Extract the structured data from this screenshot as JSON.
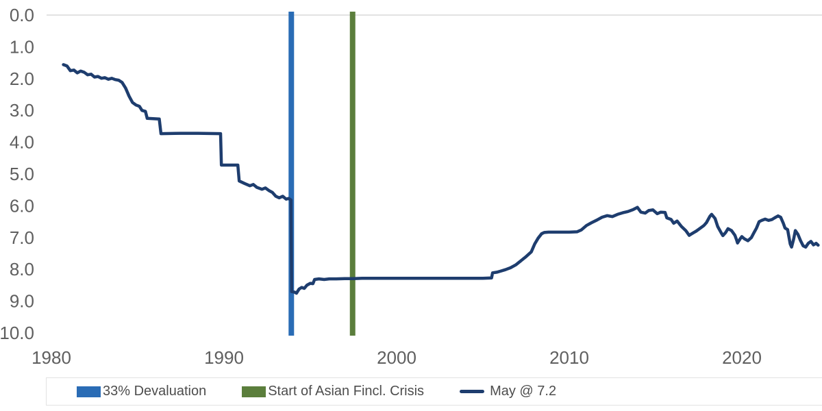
{
  "chart_data": {
    "type": "line",
    "title": "",
    "xlabel": "",
    "ylabel": "",
    "x_axis": {
      "range": [
        1980,
        2024.65
      ],
      "ticks": [
        {
          "label": "1980",
          "value": 1980
        },
        {
          "label": "1990",
          "value": 1990
        },
        {
          "label": "2000",
          "value": 2000
        },
        {
          "label": "2010",
          "value": 2010
        },
        {
          "label": "2020",
          "value": 2020
        }
      ]
    },
    "y_axis": {
      "range": [
        0,
        10
      ],
      "inverted": true,
      "grid_at": [
        0
      ],
      "ticks": [
        {
          "label": "0.0",
          "value": 0
        },
        {
          "label": "1.0",
          "value": 1
        },
        {
          "label": "2.0",
          "value": 2
        },
        {
          "label": "3.0",
          "value": 3
        },
        {
          "label": "4.0",
          "value": 4
        },
        {
          "label": "5.0",
          "value": 5
        },
        {
          "label": "6.0",
          "value": 6
        },
        {
          "label": "7.0",
          "value": 7
        },
        {
          "label": "8.0",
          "value": 8
        },
        {
          "label": "9.0",
          "value": 9
        },
        {
          "label": "10.0",
          "value": 10
        }
      ]
    },
    "annotations": [
      {
        "type": "vline",
        "x": 1993.9,
        "color": "#2a6cb5",
        "label": "33% Devaluation"
      },
      {
        "type": "vline",
        "x": 1997.45,
        "color": "#5b7e3c",
        "label": "Start of Asian Fincl. Crisis"
      }
    ],
    "series": [
      {
        "name": "May @ 7.2",
        "color": "#1e3d6e",
        "points": [
          [
            1980.7,
            1.56
          ],
          [
            1980.9,
            1.6
          ],
          [
            1981.1,
            1.75
          ],
          [
            1981.3,
            1.73
          ],
          [
            1981.5,
            1.82
          ],
          [
            1981.7,
            1.76
          ],
          [
            1981.9,
            1.8
          ],
          [
            1982.1,
            1.88
          ],
          [
            1982.3,
            1.86
          ],
          [
            1982.5,
            1.95
          ],
          [
            1982.7,
            1.93
          ],
          [
            1982.9,
            1.99
          ],
          [
            1983.1,
            1.97
          ],
          [
            1983.3,
            2.02
          ],
          [
            1983.5,
            1.99
          ],
          [
            1983.7,
            2.03
          ],
          [
            1983.9,
            2.05
          ],
          [
            1984.1,
            2.12
          ],
          [
            1984.3,
            2.3
          ],
          [
            1984.5,
            2.55
          ],
          [
            1984.7,
            2.75
          ],
          [
            1984.9,
            2.83
          ],
          [
            1985.1,
            2.87
          ],
          [
            1985.25,
            3.0
          ],
          [
            1985.45,
            3.03
          ],
          [
            1985.55,
            3.25
          ],
          [
            1986.25,
            3.27
          ],
          [
            1986.35,
            3.73
          ],
          [
            1987.5,
            3.72
          ],
          [
            1988.5,
            3.72
          ],
          [
            1989.8,
            3.73
          ],
          [
            1989.85,
            4.72
          ],
          [
            1990.8,
            4.72
          ],
          [
            1990.88,
            5.22
          ],
          [
            1991.2,
            5.3
          ],
          [
            1991.5,
            5.37
          ],
          [
            1991.7,
            5.33
          ],
          [
            1991.9,
            5.42
          ],
          [
            1992.2,
            5.48
          ],
          [
            1992.4,
            5.44
          ],
          [
            1992.6,
            5.52
          ],
          [
            1992.8,
            5.58
          ],
          [
            1993.0,
            5.7
          ],
          [
            1993.2,
            5.75
          ],
          [
            1993.4,
            5.7
          ],
          [
            1993.6,
            5.79
          ],
          [
            1993.75,
            5.77
          ],
          [
            1993.88,
            5.82
          ],
          [
            1993.92,
            8.7
          ],
          [
            1994.1,
            8.72
          ],
          [
            1994.2,
            8.75
          ],
          [
            1994.35,
            8.62
          ],
          [
            1994.5,
            8.57
          ],
          [
            1994.65,
            8.6
          ],
          [
            1994.8,
            8.5
          ],
          [
            1995.0,
            8.44
          ],
          [
            1995.15,
            8.45
          ],
          [
            1995.25,
            8.32
          ],
          [
            1995.5,
            8.3
          ],
          [
            1995.8,
            8.32
          ],
          [
            1996.1,
            8.3
          ],
          [
            1996.5,
            8.3
          ],
          [
            1997.0,
            8.29
          ],
          [
            1997.5,
            8.29
          ],
          [
            1998.0,
            8.28
          ],
          [
            1999.0,
            8.28
          ],
          [
            2000.0,
            8.28
          ],
          [
            2001.0,
            8.28
          ],
          [
            2002.0,
            8.28
          ],
          [
            2003.0,
            8.28
          ],
          [
            2004.0,
            8.28
          ],
          [
            2005.0,
            8.28
          ],
          [
            2005.5,
            8.27
          ],
          [
            2005.56,
            8.11
          ],
          [
            2005.8,
            8.09
          ],
          [
            2006.0,
            8.06
          ],
          [
            2006.3,
            8.01
          ],
          [
            2006.6,
            7.95
          ],
          [
            2006.9,
            7.86
          ],
          [
            2007.2,
            7.73
          ],
          [
            2007.5,
            7.6
          ],
          [
            2007.8,
            7.45
          ],
          [
            2008.0,
            7.2
          ],
          [
            2008.2,
            7.02
          ],
          [
            2008.4,
            6.88
          ],
          [
            2008.55,
            6.84
          ],
          [
            2008.8,
            6.83
          ],
          [
            2009.2,
            6.83
          ],
          [
            2009.6,
            6.83
          ],
          [
            2010.0,
            6.83
          ],
          [
            2010.45,
            6.82
          ],
          [
            2010.7,
            6.76
          ],
          [
            2011.0,
            6.62
          ],
          [
            2011.3,
            6.53
          ],
          [
            2011.6,
            6.45
          ],
          [
            2011.9,
            6.36
          ],
          [
            2012.2,
            6.31
          ],
          [
            2012.5,
            6.34
          ],
          [
            2012.8,
            6.27
          ],
          [
            2013.1,
            6.22
          ],
          [
            2013.4,
            6.18
          ],
          [
            2013.7,
            6.12
          ],
          [
            2013.95,
            6.05
          ],
          [
            2014.15,
            6.2
          ],
          [
            2014.4,
            6.23
          ],
          [
            2014.6,
            6.15
          ],
          [
            2014.85,
            6.13
          ],
          [
            2015.1,
            6.25
          ],
          [
            2015.3,
            6.2
          ],
          [
            2015.55,
            6.21
          ],
          [
            2015.65,
            6.38
          ],
          [
            2015.9,
            6.43
          ],
          [
            2016.05,
            6.55
          ],
          [
            2016.25,
            6.48
          ],
          [
            2016.5,
            6.65
          ],
          [
            2016.75,
            6.78
          ],
          [
            2016.95,
            6.93
          ],
          [
            2017.1,
            6.88
          ],
          [
            2017.35,
            6.8
          ],
          [
            2017.6,
            6.7
          ],
          [
            2017.8,
            6.62
          ],
          [
            2017.95,
            6.53
          ],
          [
            2018.15,
            6.33
          ],
          [
            2018.25,
            6.27
          ],
          [
            2018.45,
            6.4
          ],
          [
            2018.6,
            6.65
          ],
          [
            2018.8,
            6.85
          ],
          [
            2018.9,
            6.94
          ],
          [
            2019.05,
            6.85
          ],
          [
            2019.2,
            6.72
          ],
          [
            2019.4,
            6.78
          ],
          [
            2019.6,
            6.93
          ],
          [
            2019.7,
            7.08
          ],
          [
            2019.75,
            7.17
          ],
          [
            2019.9,
            7.04
          ],
          [
            2020.0,
            6.97
          ],
          [
            2020.15,
            7.04
          ],
          [
            2020.35,
            7.1
          ],
          [
            2020.55,
            7.0
          ],
          [
            2020.7,
            6.85
          ],
          [
            2020.85,
            6.7
          ],
          [
            2021.0,
            6.5
          ],
          [
            2021.15,
            6.46
          ],
          [
            2021.35,
            6.42
          ],
          [
            2021.55,
            6.46
          ],
          [
            2021.75,
            6.43
          ],
          [
            2021.9,
            6.38
          ],
          [
            2022.1,
            6.32
          ],
          [
            2022.25,
            6.36
          ],
          [
            2022.4,
            6.55
          ],
          [
            2022.5,
            6.7
          ],
          [
            2022.65,
            6.75
          ],
          [
            2022.8,
            7.2
          ],
          [
            2022.88,
            7.3
          ],
          [
            2023.0,
            7.05
          ],
          [
            2023.1,
            6.78
          ],
          [
            2023.25,
            6.9
          ],
          [
            2023.4,
            7.1
          ],
          [
            2023.55,
            7.26
          ],
          [
            2023.7,
            7.3
          ],
          [
            2023.85,
            7.18
          ],
          [
            2024.0,
            7.12
          ],
          [
            2024.15,
            7.23
          ],
          [
            2024.3,
            7.18
          ],
          [
            2024.42,
            7.24
          ]
        ]
      }
    ],
    "legend": {
      "position": "bottom",
      "entries": [
        {
          "label": "33% Devaluation",
          "swatch": "box",
          "color": "#2a6cb5"
        },
        {
          "label": "Start of Asian Fincl. Crisis",
          "swatch": "box",
          "color": "#5b7e3c"
        },
        {
          "label": "May @ 7.2",
          "swatch": "line",
          "color": "#1e3d6e"
        }
      ]
    },
    "colors": {
      "grid": "#d9d9d9",
      "axis_text": "#5f5f5f",
      "legend_text": "#4d4d4d",
      "legend_border": "#e2e2e2"
    }
  }
}
